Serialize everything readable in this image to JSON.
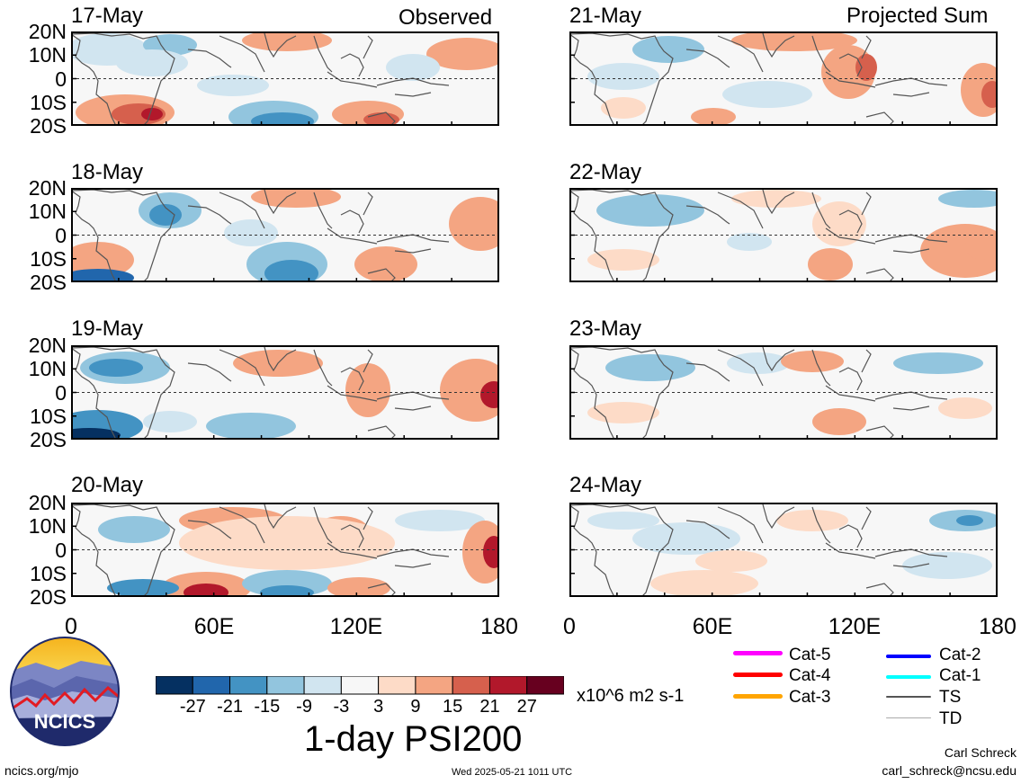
{
  "panels": [
    {
      "date": "17-May",
      "label": "Observed"
    },
    {
      "date": "18-May",
      "label": ""
    },
    {
      "date": "19-May",
      "label": ""
    },
    {
      "date": "20-May",
      "label": ""
    },
    {
      "date": "21-May",
      "label": "Projected Sum"
    },
    {
      "date": "22-May",
      "label": ""
    },
    {
      "date": "23-May",
      "label": ""
    },
    {
      "date": "24-May",
      "label": ""
    }
  ],
  "y_labels": [
    "20N",
    "10N",
    "0",
    "10S",
    "20S"
  ],
  "x_labels": [
    "0",
    "60E",
    "120E",
    "180"
  ],
  "colorbar": {
    "ticks": [
      "-27",
      "-21",
      "-15",
      "-9",
      "-3",
      "3",
      "9",
      "15",
      "21",
      "27"
    ],
    "colors": [
      "#053061",
      "#2166ac",
      "#4393c3",
      "#92c5de",
      "#d1e5f0",
      "#f7f7f7",
      "#fddbc7",
      "#f4a582",
      "#d6604d",
      "#b2182b",
      "#67001f"
    ],
    "units": "x10^6 m2 s-1",
    "title": "1-day PSI200"
  },
  "legend": [
    {
      "label": "Cat-5",
      "color": "#ff00ff"
    },
    {
      "label": "Cat-4",
      "color": "#ff0000"
    },
    {
      "label": "Cat-3",
      "color": "#ffa500"
    },
    {
      "label": "Cat-2",
      "color": "#0000ff"
    },
    {
      "label": "Cat-1",
      "color": "#00ffff"
    },
    {
      "label": "TS",
      "color": "#555555"
    },
    {
      "label": "TD",
      "color": "#aaaaaa"
    }
  ],
  "logo_text": "NCICS",
  "footer": {
    "left": "ncics.org/mjo",
    "center": "Wed 2025-05-21 1011 UTC",
    "author": "Carl Schreck",
    "email": "carl_schreck@ncsu.edu"
  }
}
